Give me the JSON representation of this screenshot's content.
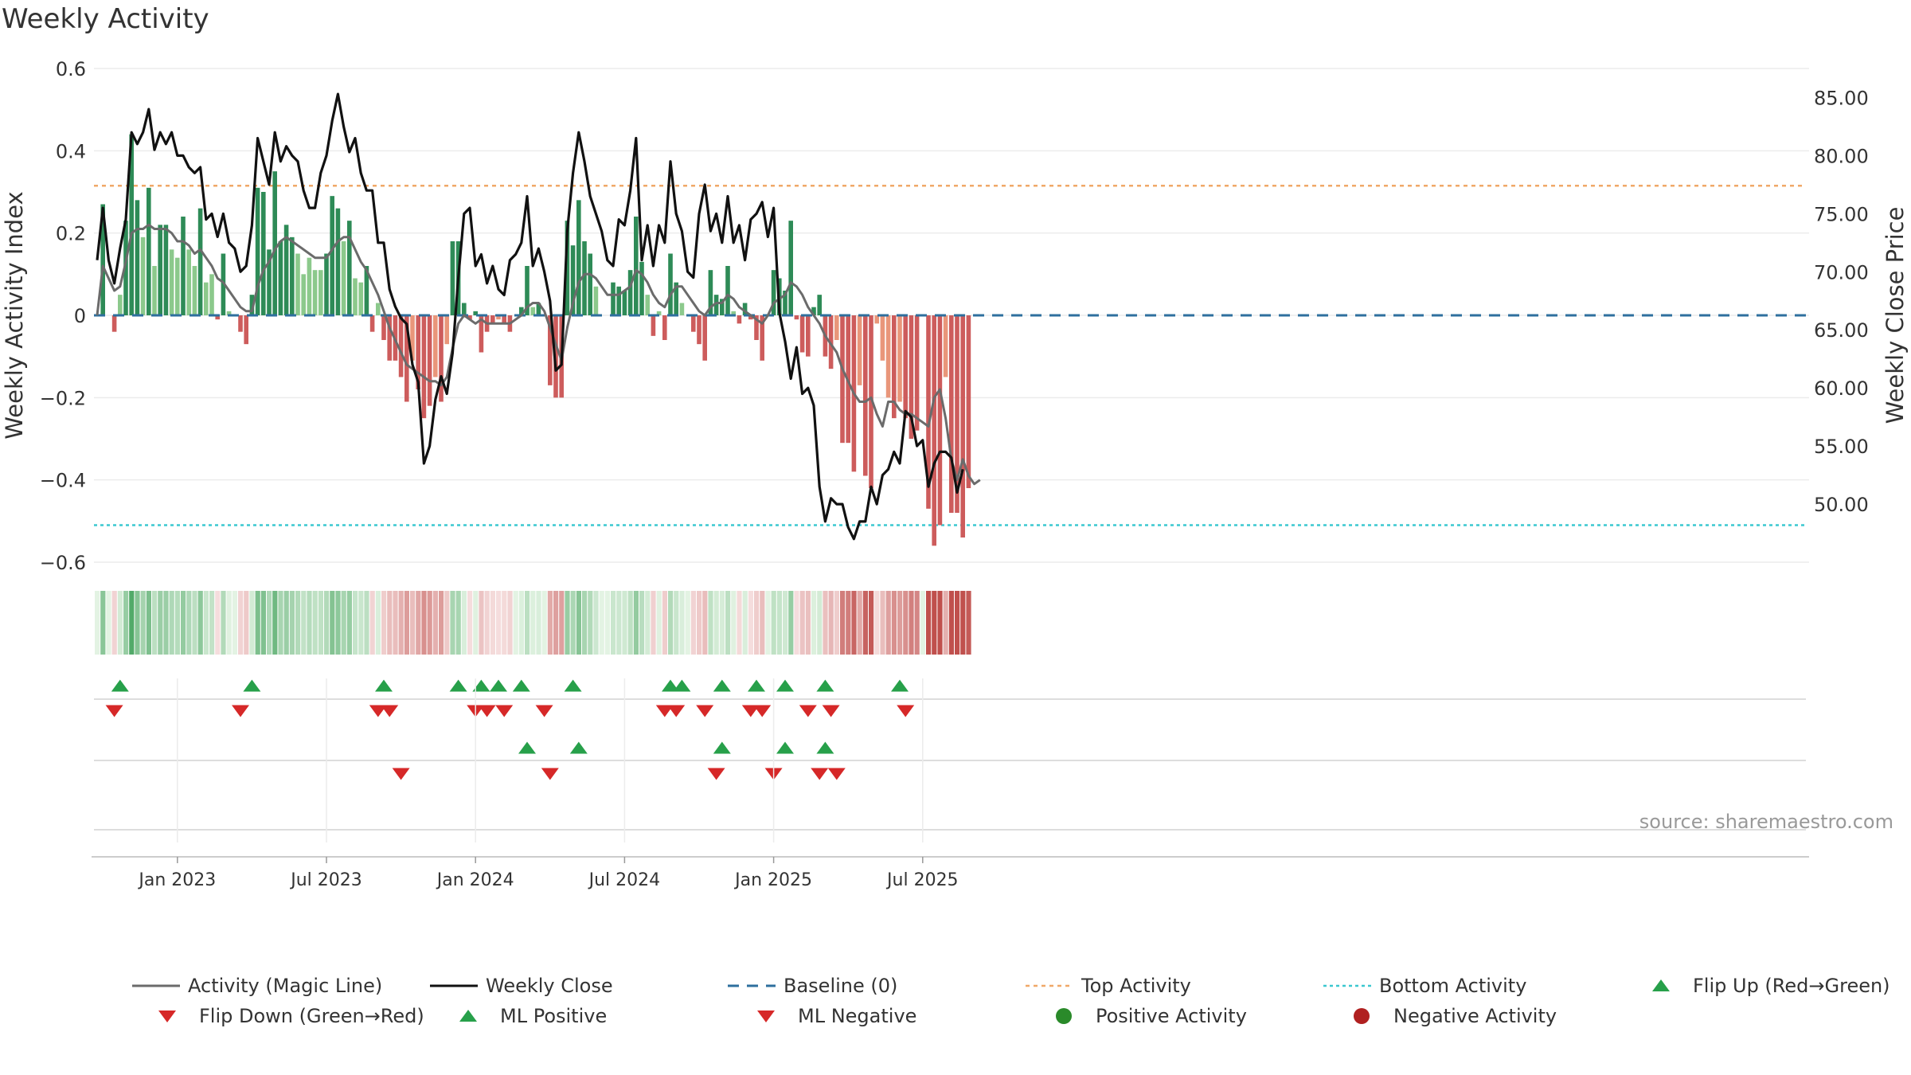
{
  "title": "Weekly Activity",
  "chart_data": {
    "type": "bar",
    "title": "Weekly Activity",
    "ylabel": "Weekly Activity Index",
    "y2label": "Weekly Close Price",
    "ylim": [
      -0.6,
      0.6
    ],
    "y2lim": [
      45.0,
      87.5
    ],
    "yticks": [
      0.6,
      0.4,
      0.2,
      0,
      -0.2,
      -0.4,
      -0.6
    ],
    "ytick_labels": [
      "0.6",
      "0.4",
      "0.2",
      "0",
      "−0.2",
      "−0.4",
      "−0.6"
    ],
    "y2ticks": [
      85,
      80,
      75,
      70,
      65,
      60,
      55,
      50
    ],
    "y2tick_labels": [
      "85.00",
      "80.00",
      "75.00",
      "70.00",
      "65.00",
      "60.00",
      "55.00",
      "50.00"
    ],
    "xtick_labels": [
      "Jan 2023",
      "Jul 2023",
      "Jan 2024",
      "Jul 2024",
      "Jan 2025",
      "Jul 2025"
    ],
    "xtick_weeks": [
      14,
      40,
      66,
      92,
      118,
      144
    ],
    "top_activity": 0.315,
    "bottom_activity": -0.51,
    "source": "source: sharemaestro.com",
    "activity": [
      0.0,
      0.27,
      0.0,
      -0.04,
      0.05,
      0.23,
      0.44,
      0.28,
      0.19,
      0.31,
      0.12,
      0.22,
      0.22,
      0.16,
      0.14,
      0.24,
      0.16,
      0.12,
      0.26,
      0.08,
      0.1,
      -0.01,
      0.15,
      0.01,
      0.0,
      -0.04,
      -0.07,
      0.05,
      0.31,
      0.3,
      0.16,
      0.35,
      0.18,
      0.22,
      0.19,
      0.15,
      0.1,
      0.14,
      0.11,
      0.11,
      0.15,
      0.29,
      0.26,
      0.18,
      0.23,
      0.09,
      0.08,
      0.12,
      -0.04,
      0.03,
      -0.06,
      -0.11,
      -0.11,
      -0.15,
      -0.21,
      -0.11,
      -0.18,
      -0.25,
      -0.22,
      -0.15,
      -0.21,
      -0.07,
      0.18,
      0.18,
      0.03,
      -0.01,
      0.01,
      -0.09,
      -0.04,
      -0.02,
      -0.01,
      -0.02,
      -0.04,
      0.0,
      0.02,
      0.12,
      0.02,
      0.03,
      0.0,
      -0.17,
      -0.2,
      -0.2,
      0.23,
      0.17,
      0.28,
      0.18,
      0.15,
      0.07,
      0.0,
      0.0,
      0.08,
      0.07,
      0.06,
      0.11,
      0.24,
      0.13,
      0.05,
      -0.05,
      0.01,
      -0.06,
      0.15,
      0.08,
      0.03,
      0.0,
      -0.04,
      -0.07,
      -0.11,
      0.11,
      0.05,
      0.04,
      0.12,
      0.01,
      -0.02,
      0.03,
      -0.01,
      -0.06,
      -0.11,
      0.0,
      0.11,
      0.09,
      0.06,
      0.23,
      -0.01,
      -0.09,
      -0.1,
      0.02,
      0.05,
      -0.1,
      -0.13,
      -0.06,
      -0.31,
      -0.31,
      -0.38,
      -0.17,
      -0.39,
      -0.42,
      -0.02,
      -0.11,
      -0.2,
      -0.25,
      -0.21,
      -0.25,
      -0.3,
      -0.28,
      0.0,
      -0.47,
      -0.56,
      -0.51,
      -0.15,
      -0.48,
      -0.48,
      -0.54,
      -0.42
    ],
    "magic_line": [
      0.0,
      0.12,
      0.09,
      0.06,
      0.07,
      0.13,
      0.2,
      0.21,
      0.21,
      0.22,
      0.21,
      0.21,
      0.21,
      0.2,
      0.18,
      0.18,
      0.17,
      0.15,
      0.16,
      0.14,
      0.12,
      0.09,
      0.08,
      0.06,
      0.04,
      0.02,
      0.01,
      0.01,
      0.07,
      0.11,
      0.13,
      0.16,
      0.18,
      0.19,
      0.18,
      0.17,
      0.16,
      0.15,
      0.14,
      0.14,
      0.14,
      0.16,
      0.18,
      0.19,
      0.19,
      0.16,
      0.13,
      0.11,
      0.08,
      0.05,
      0.01,
      -0.03,
      -0.06,
      -0.09,
      -0.12,
      -0.13,
      -0.14,
      -0.15,
      -0.16,
      -0.16,
      -0.17,
      -0.15,
      -0.08,
      -0.02,
      0.0,
      -0.01,
      -0.02,
      -0.01,
      -0.02,
      -0.02,
      -0.02,
      -0.02,
      -0.02,
      -0.01,
      0.0,
      0.02,
      0.03,
      0.03,
      0.01,
      -0.03,
      -0.07,
      -0.11,
      -0.03,
      0.03,
      0.08,
      0.1,
      0.1,
      0.09,
      0.07,
      0.05,
      0.05,
      0.05,
      0.06,
      0.07,
      0.11,
      0.1,
      0.08,
      0.05,
      0.03,
      0.02,
      0.05,
      0.07,
      0.07,
      0.05,
      0.03,
      0.01,
      0.0,
      0.02,
      0.03,
      0.03,
      0.05,
      0.04,
      0.02,
      0.01,
      0.0,
      -0.01,
      -0.02,
      0.0,
      0.03,
      0.04,
      0.05,
      0.08,
      0.07,
      0.05,
      0.02,
      0.0,
      -0.02,
      -0.05,
      -0.07,
      -0.09,
      -0.13,
      -0.16,
      -0.19,
      -0.21,
      -0.21,
      -0.2,
      -0.24,
      -0.27,
      -0.21,
      -0.21,
      -0.23,
      -0.24,
      -0.24,
      -0.25,
      -0.26,
      -0.27,
      -0.2,
      -0.18,
      -0.25,
      -0.35,
      -0.4,
      -0.35,
      -0.39,
      -0.41,
      -0.4
    ],
    "weekly_close": [
      71.0,
      75.5,
      71.0,
      69.0,
      72.0,
      74.5,
      82.0,
      81.0,
      82.0,
      84.0,
      80.5,
      82.0,
      81.0,
      82.0,
      80.0,
      80.0,
      79.0,
      78.5,
      79.0,
      74.5,
      75.0,
      73.0,
      75.0,
      72.5,
      72.0,
      70.0,
      70.5,
      74.0,
      81.5,
      79.5,
      77.5,
      82.0,
      79.5,
      80.8,
      80.0,
      79.5,
      77.0,
      75.5,
      75.5,
      78.5,
      80.0,
      83.0,
      85.3,
      82.5,
      80.3,
      81.5,
      78.5,
      77.0,
      77.0,
      72.5,
      72.5,
      68.5,
      67.0,
      66.0,
      65.5,
      62.0,
      60.5,
      53.5,
      55.0,
      59.0,
      61.0,
      59.5,
      63.0,
      69.5,
      75.0,
      75.5,
      70.5,
      71.5,
      69.0,
      70.5,
      68.5,
      68.0,
      71.0,
      71.5,
      72.5,
      76.5,
      70.5,
      72.0,
      70.0,
      67.5,
      61.5,
      62.0,
      73.5,
      78.5,
      82.0,
      79.5,
      76.5,
      75.0,
      73.5,
      71.0,
      70.5,
      74.5,
      74.0,
      77.0,
      81.5,
      71.0,
      74.0,
      70.5,
      74.0,
      72.5,
      79.5,
      75.0,
      73.5,
      70.0,
      69.5,
      75.0,
      77.5,
      73.5,
      75.0,
      72.5,
      76.5,
      72.5,
      74.0,
      71.0,
      74.5,
      75.0,
      76.0,
      73.0,
      75.5,
      66.5,
      64.0,
      60.8,
      63.5,
      59.5,
      60.0,
      58.5,
      51.5,
      48.5,
      50.5,
      50.0,
      50.0,
      48.0,
      47.0,
      48.5,
      48.5,
      51.5,
      50.0,
      52.5,
      53.0,
      54.5,
      53.5,
      58.0,
      57.5,
      55.0,
      55.5,
      51.5,
      53.5,
      54.5,
      54.5,
      54.0,
      51.0,
      53.0
    ],
    "flip_up_weeks": [
      4,
      27,
      50,
      63,
      67,
      70,
      74,
      83,
      100,
      102,
      109,
      115,
      120,
      127,
      140
    ],
    "flip_down_weeks": [
      3,
      25,
      49,
      51,
      66,
      68,
      71,
      78,
      99,
      101,
      106,
      114,
      116,
      124,
      128,
      141
    ],
    "ml_positive_weeks": [
      75,
      84,
      109,
      120,
      127
    ],
    "ml_negative_weeks": [
      53,
      79,
      108,
      118,
      126,
      129
    ]
  },
  "legend": [
    {
      "key": "activity_line",
      "label": "Activity (Magic Line)"
    },
    {
      "key": "weekly_close",
      "label": "Weekly Close"
    },
    {
      "key": "baseline",
      "label": "Baseline (0)"
    },
    {
      "key": "top_activity",
      "label": "Top Activity"
    },
    {
      "key": "bottom_activity",
      "label": "Bottom Activity"
    },
    {
      "key": "flip_up",
      "label": "Flip Up (Red→Green)"
    },
    {
      "key": "flip_down",
      "label": "Flip Down (Green→Red)"
    },
    {
      "key": "ml_positive",
      "label": "ML Positive"
    },
    {
      "key": "ml_negative",
      "label": "ML Negative"
    },
    {
      "key": "positive_activity",
      "label": "Positive Activity"
    },
    {
      "key": "negative_activity",
      "label": "Negative Activity"
    }
  ],
  "colors": {
    "magic_line": "#6b6b6b",
    "weekly_close": "#111111",
    "baseline": "#2e6f9e",
    "top_activity": "#f0a868",
    "bottom_activity": "#3cc8d0",
    "flip_up": "#27a04a",
    "flip_down": "#d62828",
    "positive_activity": "#2a8a2a",
    "negative_activity": "#b02020",
    "pos_strong": "#2e8b57",
    "pos_light": "#8cc98c",
    "neg_strong": "#cd5c5c",
    "neg_light": "#e9967a"
  }
}
